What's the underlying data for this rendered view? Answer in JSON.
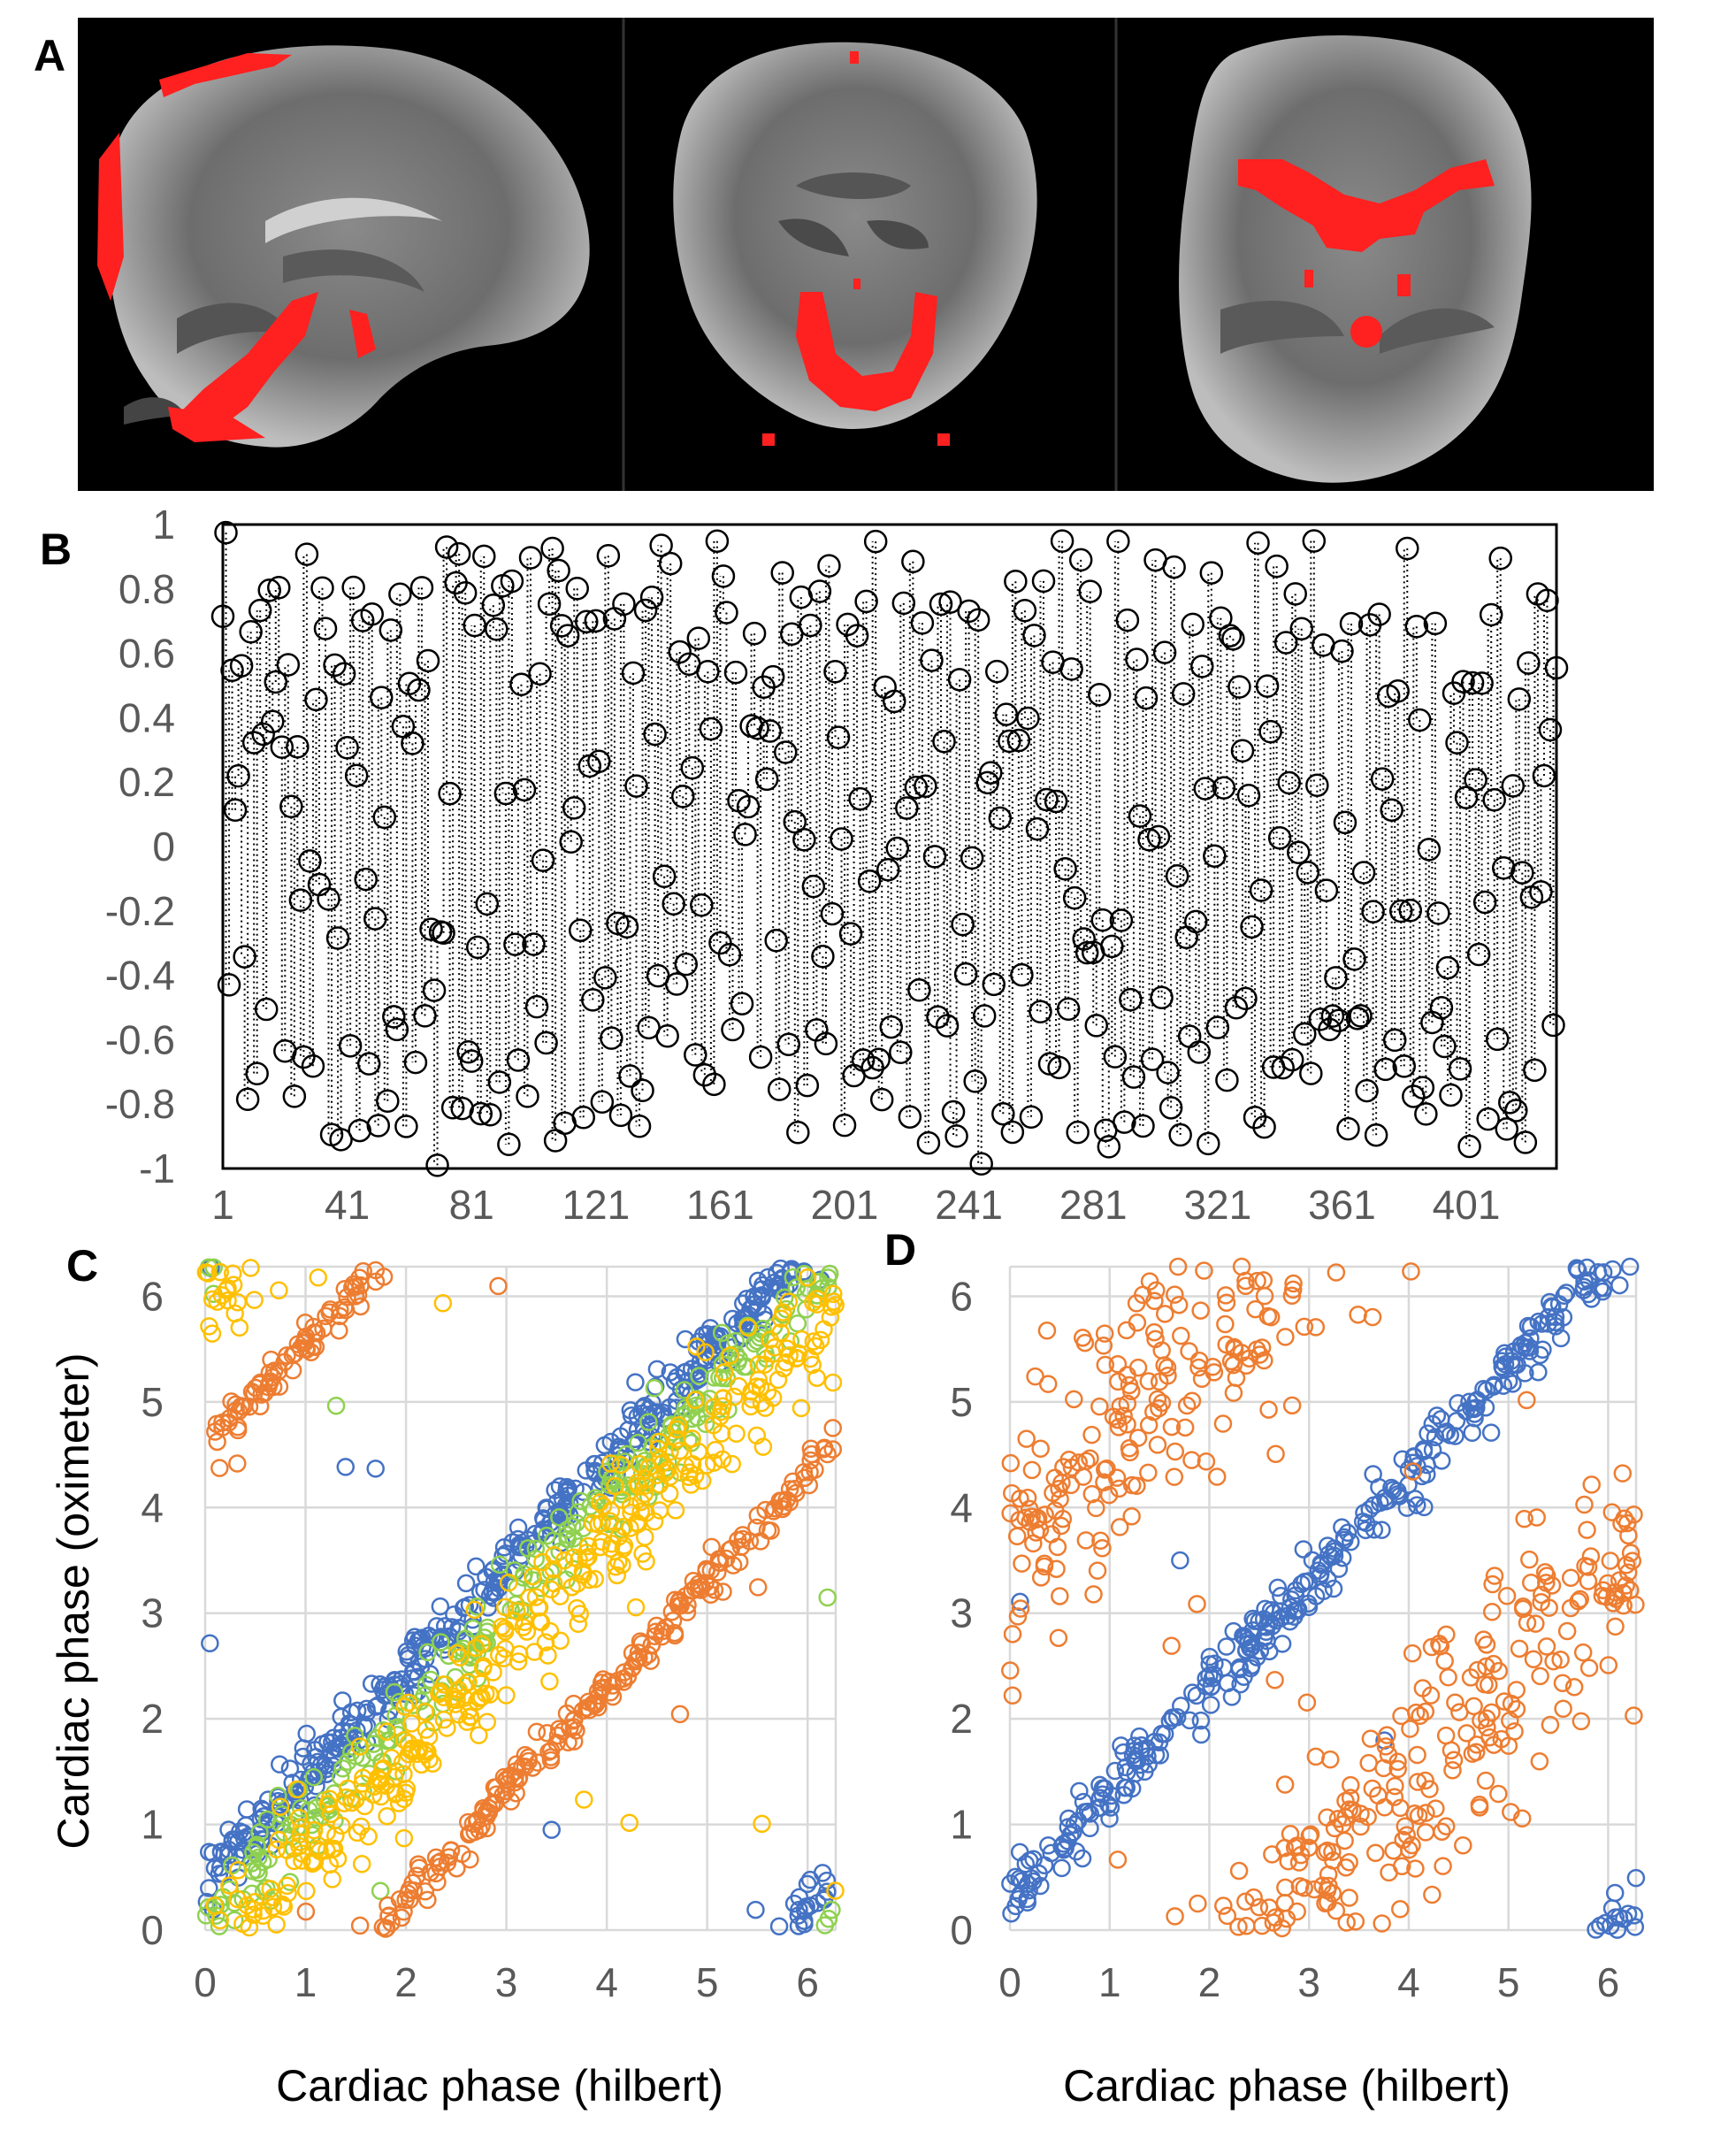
{
  "figure": {
    "panel_labels": [
      "A",
      "B",
      "C",
      "D"
    ]
  },
  "chart_data": [
    {
      "panel": "A",
      "type": "image",
      "description_visible": "three brain MRI slices (sagittal, coronal, axial) with red overlay",
      "colors": {
        "background": "#000000",
        "overlay": "#ff2020"
      }
    },
    {
      "panel": "B",
      "type": "scatter",
      "style": "circles joined by vertical dotted lines",
      "x_tick_labels": [
        "1",
        "41",
        "81",
        "121",
        "161",
        "201",
        "241",
        "281",
        "321",
        "361",
        "401"
      ],
      "y_tick_labels": [
        "1",
        "0.8",
        "0.6",
        "0.4",
        "0.2",
        "0",
        "-0.2",
        "-0.4",
        "-0.6",
        "-0.8",
        "-1"
      ],
      "xlim": [
        1,
        430
      ],
      "ylim": [
        -1,
        1
      ],
      "grid": false,
      "n_points": 430,
      "colors": {
        "marker": "#000000"
      }
    },
    {
      "panel": "C",
      "type": "scatter",
      "xlabel": "Cardiac phase (hilbert)",
      "ylabel": "Cardiac phase (oximeter)",
      "x_tick_labels": [
        "0",
        "1",
        "2",
        "3",
        "4",
        "5",
        "6"
      ],
      "y_tick_labels": [
        "0",
        "1",
        "2",
        "3",
        "4",
        "5",
        "6"
      ],
      "xlim": [
        0,
        6.28
      ],
      "ylim": [
        0,
        6.28
      ],
      "grid": true,
      "series": [
        {
          "color": "#4472c4",
          "offset": 0.45,
          "spread": 0.15,
          "count": 420
        },
        {
          "color": "#8fd14f",
          "offset": 0.05,
          "spread": 0.2,
          "count": 260
        },
        {
          "color": "#ffc000",
          "offset": -0.35,
          "spread": 0.28,
          "count": 360
        },
        {
          "color": "#ed7d31",
          "offset": -1.7,
          "spread": 0.1,
          "count": 300
        }
      ]
    },
    {
      "panel": "D",
      "type": "scatter",
      "xlabel": "Cardiac phase (hilbert)",
      "x_tick_labels": [
        "0",
        "1",
        "2",
        "3",
        "4",
        "5",
        "6"
      ],
      "y_tick_labels": [
        "0",
        "1",
        "2",
        "3",
        "4",
        "5",
        "6"
      ],
      "xlim": [
        0,
        6.28
      ],
      "ylim": [
        0,
        6.28
      ],
      "grid": true,
      "series": [
        {
          "color": "#4472c4",
          "offset": 0.3,
          "spread": 0.15,
          "count": 330
        },
        {
          "color": "#ed7d31",
          "offset": -2.7,
          "spread": 0.6,
          "count": 420
        }
      ]
    }
  ]
}
